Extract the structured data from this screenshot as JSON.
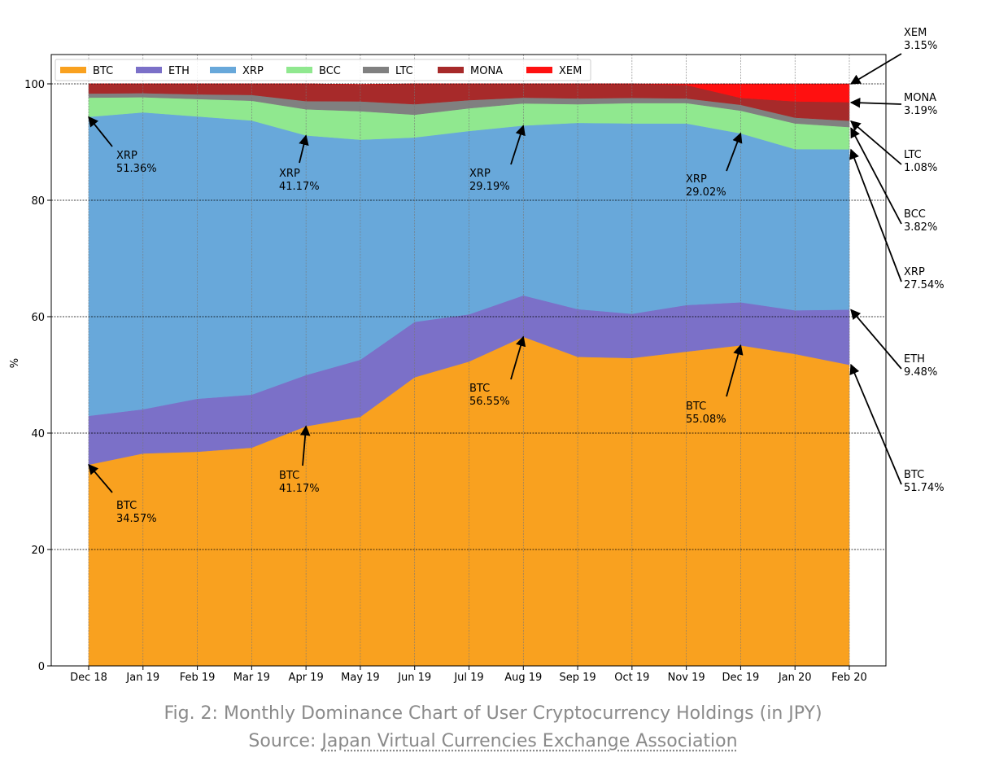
{
  "chart_data": {
    "type": "area",
    "stacked": true,
    "title": "",
    "xlabel": "",
    "ylabel": "%",
    "ylim": [
      0,
      100
    ],
    "yticks": [
      0,
      20,
      40,
      60,
      80,
      100
    ],
    "grid": true,
    "legend_position": "top-left",
    "categories": [
      "Dec 18",
      "Jan 19",
      "Feb 19",
      "Mar 19",
      "Apr 19",
      "May 19",
      "Jun 19",
      "Jul 19",
      "Aug 19",
      "Sep 19",
      "Oct 19",
      "Nov 19",
      "Dec 19",
      "Jan 20",
      "Feb 20"
    ],
    "series": [
      {
        "name": "BTC",
        "color": "#f9a11f",
        "values": [
          34.57,
          36.5,
          36.8,
          37.5,
          41.17,
          42.8,
          49.6,
          52.3,
          56.55,
          53.1,
          52.9,
          54.0,
          55.08,
          53.6,
          51.74
        ]
      },
      {
        "name": "ETH",
        "color": "#7b70c8",
        "values": [
          8.4,
          7.6,
          9.1,
          9.1,
          8.8,
          9.8,
          9.5,
          8.1,
          7.1,
          8.2,
          7.6,
          8.0,
          7.4,
          7.5,
          9.48
        ]
      },
      {
        "name": "XRP",
        "color": "#68a8da",
        "values": [
          51.36,
          51.0,
          48.5,
          47.1,
          41.17,
          37.8,
          31.7,
          31.5,
          29.19,
          32.0,
          32.7,
          31.2,
          29.02,
          27.7,
          27.54
        ]
      },
      {
        "name": "BCC",
        "color": "#90e88f",
        "values": [
          3.3,
          2.6,
          3.0,
          3.4,
          4.5,
          4.9,
          3.9,
          3.9,
          3.8,
          3.2,
          3.5,
          3.5,
          3.9,
          4.4,
          3.82
        ]
      },
      {
        "name": "LTC",
        "color": "#808080",
        "values": [
          0.7,
          0.7,
          0.8,
          1.0,
          1.4,
          1.7,
          1.8,
          1.4,
          1.0,
          1.0,
          0.9,
          0.8,
          1.0,
          1.0,
          1.08
        ]
      },
      {
        "name": "MONA",
        "color": "#a72a2a",
        "values": [
          1.67,
          1.6,
          1.8,
          1.9,
          2.96,
          2.9,
          3.5,
          2.8,
          2.36,
          2.5,
          2.4,
          2.3,
          1.2,
          2.8,
          3.19
        ]
      },
      {
        "name": "XEM",
        "color": "#ff1010",
        "values": [
          0,
          0,
          0,
          0,
          0,
          0,
          0,
          0,
          0,
          0,
          0,
          0.2,
          2.4,
          3.0,
          3.15
        ]
      }
    ],
    "annotations": [
      {
        "label": "XRP",
        "value_text": "51.36%",
        "category": "Dec 18",
        "y": 94.3
      },
      {
        "label": "BTC",
        "value_text": "34.57%",
        "category": "Dec 18",
        "y": 34.57
      },
      {
        "label": "XRP",
        "value_text": "41.17%",
        "category": "Apr 19",
        "y": 91.1
      },
      {
        "label": "BTC",
        "value_text": "41.17%",
        "category": "Apr 19",
        "y": 41.17
      },
      {
        "label": "XRP",
        "value_text": "29.19%",
        "category": "Aug 19",
        "y": 92.8
      },
      {
        "label": "BTC",
        "value_text": "56.55%",
        "category": "Aug 19",
        "y": 56.55
      },
      {
        "label": "XRP",
        "value_text": "29.02%",
        "category": "Dec 19",
        "y": 91.5
      },
      {
        "label": "BTC",
        "value_text": "55.08%",
        "category": "Dec 19",
        "y": 55.08
      },
      {
        "label": "XEM",
        "value_text": "3.15%",
        "category": "Feb 20",
        "y": 100,
        "side": "right"
      },
      {
        "label": "MONA",
        "value_text": "3.19%",
        "category": "Feb 20",
        "y": 96.8,
        "side": "right"
      },
      {
        "label": "LTC",
        "value_text": "1.08%",
        "category": "Feb 20",
        "y": 93.6,
        "side": "right"
      },
      {
        "label": "BCC",
        "value_text": "3.82%",
        "category": "Feb 20",
        "y": 92.4,
        "side": "right"
      },
      {
        "label": "XRP",
        "value_text": "27.54%",
        "category": "Feb 20",
        "y": 88.7,
        "side": "right"
      },
      {
        "label": "ETH",
        "value_text": "9.48%",
        "category": "Feb 20",
        "y": 61.2,
        "side": "right"
      },
      {
        "label": "BTC",
        "value_text": "51.74%",
        "category": "Feb 20",
        "y": 51.74,
        "side": "right"
      }
    ]
  },
  "caption": {
    "line1": "Fig. 2: Monthly Dominance Chart of User Cryptocurrency Holdings (in JPY)",
    "source_prefix": "Source: ",
    "source_link": "Japan Virtual Currencies Exchange Association"
  }
}
